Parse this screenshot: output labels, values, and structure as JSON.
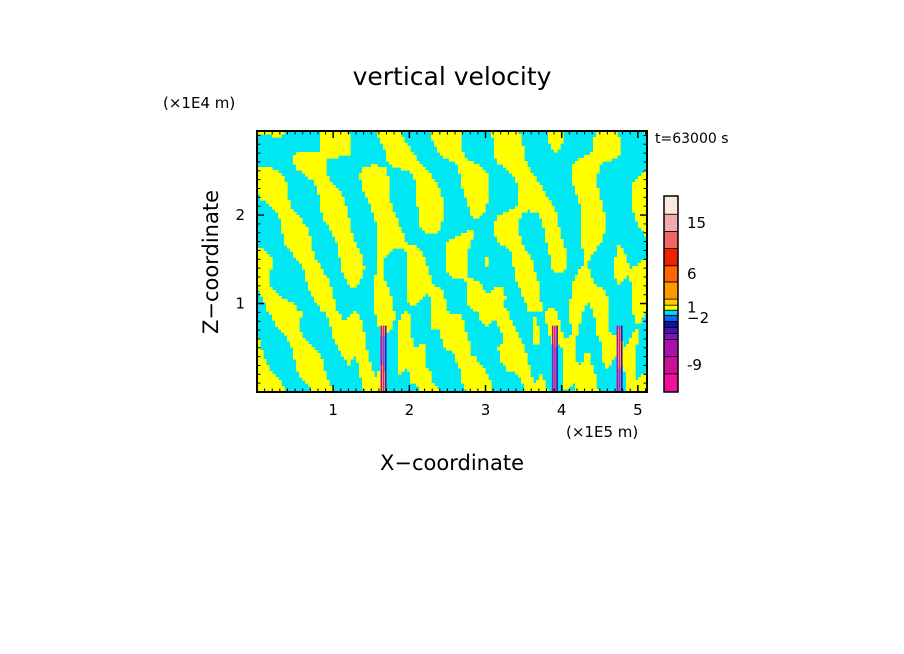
{
  "chart_data": {
    "type": "heatmap",
    "title": "vertical velocity",
    "xlabel": "X−coordinate",
    "ylabel": "Z−coordinate",
    "x_unit": "(×1E5 m)",
    "y_unit": "(×1E4 m)",
    "time_label": "t=63000 s",
    "xlim": [
      0,
      5.12
    ],
    "ylim": [
      0,
      2.95
    ],
    "x_ticks": [
      {
        "value": 1,
        "label": "1"
      },
      {
        "value": 2,
        "label": "2"
      },
      {
        "value": 3,
        "label": "3"
      },
      {
        "value": 4,
        "label": "4"
      },
      {
        "value": 5,
        "label": "5"
      }
    ],
    "y_ticks": [
      {
        "value": 1,
        "label": "1"
      },
      {
        "value": 2,
        "label": "2"
      }
    ],
    "colorbar": {
      "levels": [
        {
          "color": "#ee1199"
        },
        {
          "color": "#cc1199"
        },
        {
          "color": "#aa11aa"
        },
        {
          "color": "#8811bb"
        },
        {
          "color": "#4411bb"
        },
        {
          "color": "#1111aa"
        },
        {
          "color": "#1166ff"
        },
        {
          "color": "#00ddee"
        },
        {
          "color": "#ffff00"
        },
        {
          "color": "#ffcc00"
        },
        {
          "color": "#ff9900"
        },
        {
          "color": "#ff6600"
        },
        {
          "color": "#ee2200"
        },
        {
          "color": "#ee6666"
        },
        {
          "color": "#f4aaaa"
        },
        {
          "color": "#fde8e0"
        }
      ],
      "tick_labels": [
        "-9",
        "−2",
        "1",
        "6",
        "15"
      ],
      "tick_level_index": [
        1,
        6,
        8,
        11,
        14
      ]
    },
    "field_colors": {
      "negative": "#00e8f4",
      "positive": "#ffff00"
    },
    "strong_updrafts_x": [
      1.65,
      3.9,
      4.75
    ]
  }
}
